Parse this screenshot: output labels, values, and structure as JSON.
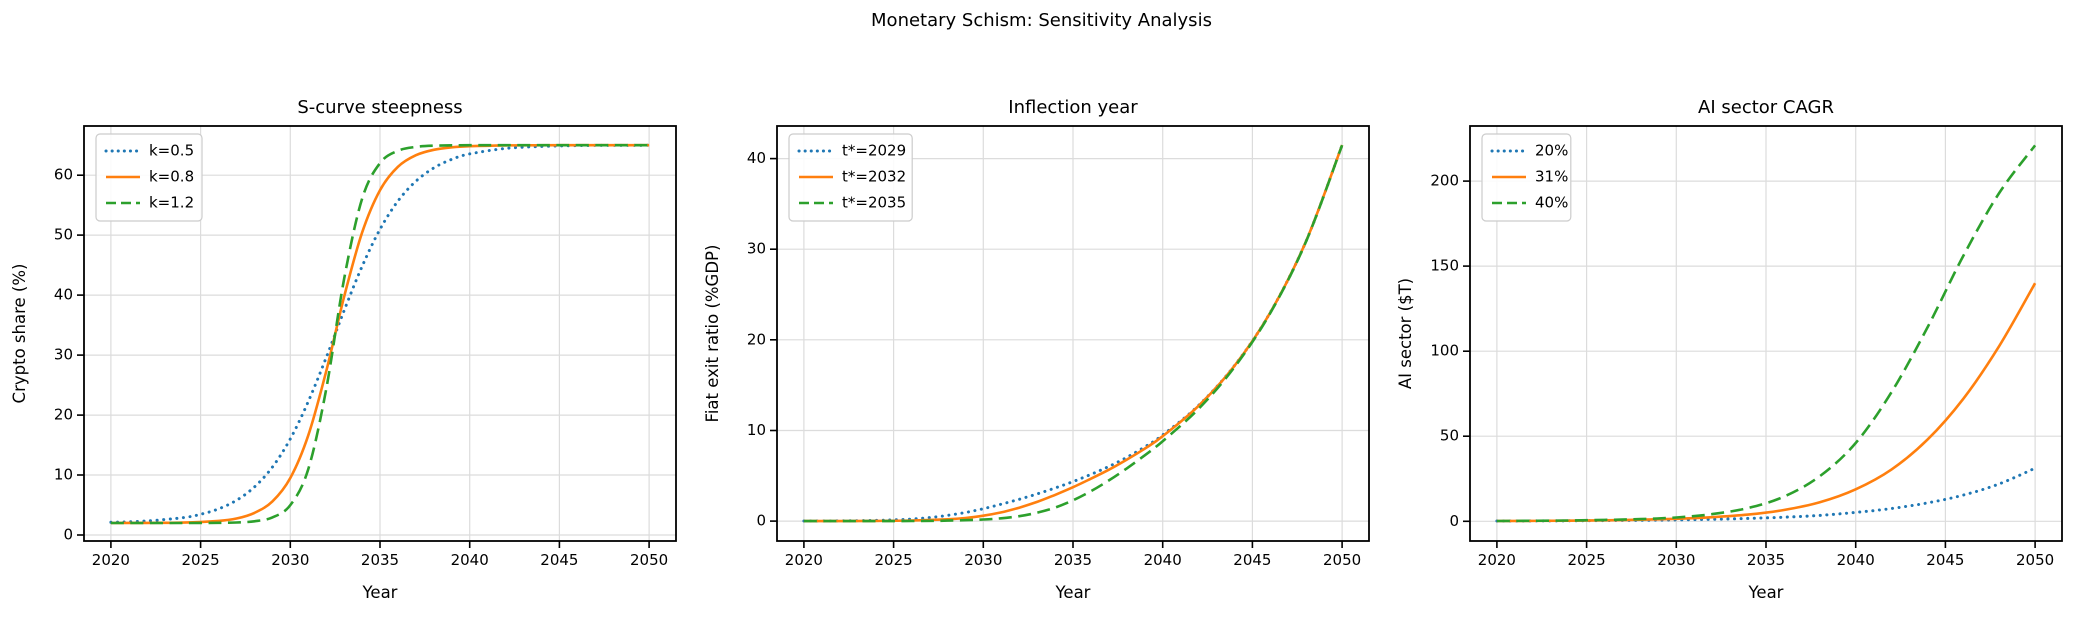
{
  "figure": {
    "title": "Monetary Schism: Sensitivity Analysis"
  },
  "colors": {
    "blue": "#1f77b4",
    "orange": "#ff7f0e",
    "green": "#2ca02c",
    "grid": "#dcdcdc",
    "spine": "#000000",
    "legend_border": "#cccccc"
  },
  "chart_data": [
    {
      "type": "line",
      "title": "S-curve steepness",
      "xlabel": "Year",
      "ylabel": "Crypto share (%)",
      "xlim": [
        2018.5,
        2051.5
      ],
      "ylim": [
        -1.0,
        68.2
      ],
      "xticks": [
        2020,
        2025,
        2030,
        2035,
        2040,
        2045,
        2050
      ],
      "yticks": [
        0,
        10,
        20,
        30,
        40,
        50,
        60
      ],
      "grid": true,
      "legend_position": "upper left",
      "series": [
        {
          "name": "k=0.5",
          "color_key": "blue",
          "style": "dotted",
          "points": [
            [
              2020,
              2.12
            ],
            [
              2022,
              2.33
            ],
            [
              2024,
              2.89
            ],
            [
              2025,
              3.45
            ],
            [
              2026,
              4.35
            ],
            [
              2027,
              5.79
            ],
            [
              2028,
              8.01
            ],
            [
              2029,
              11.33
            ],
            [
              2030,
              16.03
            ],
            [
              2031,
              22.22
            ],
            [
              2032,
              29.58
            ],
            [
              2033,
              37.42
            ],
            [
              2034,
              44.79
            ],
            [
              2035,
              50.97
            ],
            [
              2036,
              55.67
            ],
            [
              2037,
              58.99
            ],
            [
              2038,
              61.22
            ],
            [
              2039,
              62.65
            ],
            [
              2040,
              63.55
            ],
            [
              2042,
              64.46
            ],
            [
              2044,
              64.8
            ],
            [
              2046,
              64.93
            ],
            [
              2048,
              64.97
            ],
            [
              2050,
              64.99
            ]
          ]
        },
        {
          "name": "k=0.8",
          "color_key": "orange",
          "style": "solid",
          "points": [
            [
              2020,
              2.0
            ],
            [
              2022,
              2.01
            ],
            [
              2024,
              2.07
            ],
            [
              2026,
              2.35
            ],
            [
              2027,
              2.76
            ],
            [
              2028,
              3.68
            ],
            [
              2029,
              5.61
            ],
            [
              2030,
              9.51
            ],
            [
              2031,
              16.58
            ],
            [
              2032,
              27.29
            ],
            [
              2033,
              39.72
            ],
            [
              2034,
              50.42
            ],
            [
              2035,
              57.49
            ],
            [
              2036,
              61.39
            ],
            [
              2037,
              63.33
            ],
            [
              2038,
              64.23
            ],
            [
              2039,
              64.65
            ],
            [
              2040,
              64.84
            ],
            [
              2042,
              64.97
            ],
            [
              2045,
              65.0
            ],
            [
              2050,
              65.0
            ]
          ]
        },
        {
          "name": "k=1.2",
          "color_key": "green",
          "style": "dashed",
          "points": [
            [
              2020,
              2.0
            ],
            [
              2024,
              2.0
            ],
            [
              2026,
              2.03
            ],
            [
              2027,
              2.09
            ],
            [
              2028,
              2.28
            ],
            [
              2029,
              2.93
            ],
            [
              2030,
              4.99
            ],
            [
              2031,
              10.94
            ],
            [
              2032,
              24.32
            ],
            [
              2033,
              42.68
            ],
            [
              2034,
              56.06
            ],
            [
              2035,
              62.01
            ],
            [
              2036,
              64.07
            ],
            [
              2037,
              64.72
            ],
            [
              2038,
              64.92
            ],
            [
              2040,
              65.0
            ],
            [
              2045,
              65.0
            ],
            [
              2050,
              65.0
            ]
          ]
        }
      ]
    },
    {
      "type": "line",
      "title": "Inflection year",
      "xlabel": "Year",
      "ylabel": "Fiat exit ratio (%GDP)",
      "xlim": [
        2018.5,
        2051.5
      ],
      "ylim": [
        -2.2,
        43.6
      ],
      "xticks": [
        2020,
        2025,
        2030,
        2035,
        2040,
        2045,
        2050
      ],
      "yticks": [
        0,
        10,
        20,
        30,
        40
      ],
      "grid": true,
      "legend_position": "upper left",
      "series": [
        {
          "name": "t*=2029",
          "color_key": "blue",
          "style": "dotted",
          "points": [
            [
              2020,
              0.01
            ],
            [
              2022,
              0.02
            ],
            [
              2024,
              0.07
            ],
            [
              2025,
              0.13
            ],
            [
              2026,
              0.22
            ],
            [
              2027,
              0.38
            ],
            [
              2028,
              0.62
            ],
            [
              2029,
              0.95
            ],
            [
              2030,
              1.36
            ],
            [
              2031,
              1.86
            ],
            [
              2032,
              2.4
            ],
            [
              2033,
              3.0
            ],
            [
              2034,
              3.65
            ],
            [
              2035,
              4.36
            ],
            [
              2036,
              5.15
            ],
            [
              2037,
              6.03
            ],
            [
              2038,
              7.03
            ],
            [
              2039,
              8.18
            ],
            [
              2040,
              9.5
            ],
            [
              2042,
              12.77
            ],
            [
              2044,
              17.16
            ],
            [
              2046,
              23.03
            ],
            [
              2048,
              30.92
            ],
            [
              2050,
              41.49
            ]
          ]
        },
        {
          "name": "t*=2032",
          "color_key": "orange",
          "style": "solid",
          "points": [
            [
              2020,
              0.0
            ],
            [
              2024,
              0.02
            ],
            [
              2026,
              0.06
            ],
            [
              2028,
              0.19
            ],
            [
              2029,
              0.34
            ],
            [
              2030,
              0.59
            ],
            [
              2031,
              0.96
            ],
            [
              2032,
              1.47
            ],
            [
              2033,
              2.12
            ],
            [
              2034,
              2.89
            ],
            [
              2035,
              3.74
            ],
            [
              2036,
              4.67
            ],
            [
              2037,
              5.67
            ],
            [
              2038,
              6.78
            ],
            [
              2039,
              8.0
            ],
            [
              2040,
              9.37
            ],
            [
              2042,
              12.72
            ],
            [
              2044,
              17.14
            ],
            [
              2046,
              23.02
            ],
            [
              2048,
              30.92
            ],
            [
              2050,
              41.49
            ]
          ]
        },
        {
          "name": "t*=2035",
          "color_key": "green",
          "style": "dashed",
          "points": [
            [
              2020,
              0.0
            ],
            [
              2026,
              0.01
            ],
            [
              2028,
              0.05
            ],
            [
              2030,
              0.17
            ],
            [
              2031,
              0.3
            ],
            [
              2032,
              0.54
            ],
            [
              2033,
              0.92
            ],
            [
              2034,
              1.49
            ],
            [
              2035,
              2.29
            ],
            [
              2036,
              3.3
            ],
            [
              2037,
              4.49
            ],
            [
              2038,
              5.81
            ],
            [
              2039,
              7.26
            ],
            [
              2040,
              8.81
            ],
            [
              2042,
              12.39
            ],
            [
              2044,
              16.99
            ],
            [
              2046,
              22.96
            ],
            [
              2048,
              30.89
            ],
            [
              2050,
              41.48
            ]
          ]
        }
      ]
    },
    {
      "type": "line",
      "title": "AI sector CAGR",
      "xlabel": "Year",
      "ylabel": "AI sector ($T)",
      "xlim": [
        2018.5,
        2051.5
      ],
      "ylim": [
        -11.6,
        232.4
      ],
      "xticks": [
        2020,
        2025,
        2030,
        2035,
        2040,
        2045,
        2050
      ],
      "yticks": [
        0,
        50,
        100,
        150,
        200
      ],
      "grid": true,
      "legend_position": "upper left",
      "series": [
        {
          "name": "20%",
          "color_key": "blue",
          "style": "dotted",
          "points": [
            [
              2020,
              0.13
            ],
            [
              2024,
              0.27
            ],
            [
              2028,
              0.56
            ],
            [
              2030,
              0.81
            ],
            [
              2032,
              1.16
            ],
            [
              2034,
              1.67
            ],
            [
              2036,
              2.41
            ],
            [
              2038,
              3.47
            ],
            [
              2040,
              5.2
            ],
            [
              2042,
              7.5
            ],
            [
              2044,
              10.8
            ],
            [
              2046,
              15.4
            ],
            [
              2048,
              22.0
            ],
            [
              2050,
              31.2
            ]
          ]
        },
        {
          "name": "31%",
          "color_key": "orange",
          "style": "solid",
          "points": [
            [
              2020,
              0.13
            ],
            [
              2024,
              0.35
            ],
            [
              2026,
              0.55
            ],
            [
              2028,
              0.9
            ],
            [
              2030,
              1.45
            ],
            [
              2032,
              2.4
            ],
            [
              2034,
              3.9
            ],
            [
              2036,
              6.6
            ],
            [
              2038,
              11.2
            ],
            [
              2040,
              18.8
            ],
            [
              2042,
              30.5
            ],
            [
              2044,
              48.0
            ],
            [
              2046,
              72.0
            ],
            [
              2048,
              103.0
            ],
            [
              2050,
              140.0
            ]
          ]
        },
        {
          "name": "40%",
          "color_key": "green",
          "style": "dashed",
          "points": [
            [
              2020,
              0.13
            ],
            [
              2024,
              0.45
            ],
            [
              2026,
              0.8
            ],
            [
              2028,
              1.3
            ],
            [
              2030,
              2.2
            ],
            [
              2032,
              4.2
            ],
            [
              2034,
              7.8
            ],
            [
              2036,
              14.5
            ],
            [
              2038,
              26.5
            ],
            [
              2040,
              46.0
            ],
            [
              2042,
              76.0
            ],
            [
              2044,
              114.0
            ],
            [
              2046,
              156.0
            ],
            [
              2048,
              193.0
            ],
            [
              2050,
              221.0
            ]
          ]
        }
      ]
    }
  ]
}
